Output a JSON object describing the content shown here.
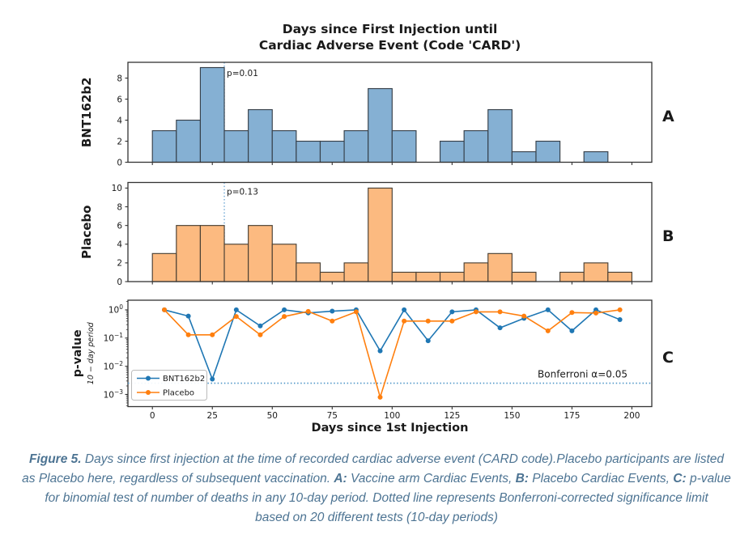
{
  "figure": {
    "title": [
      "Days since First Injection until",
      "Cardiac Adverse Event (Code 'CARD')"
    ],
    "xlabel": "Days since 1st Injection",
    "xticks": [
      0,
      25,
      50,
      75,
      100,
      125,
      150,
      175,
      200
    ],
    "panel_labels": [
      "A",
      "B",
      "C"
    ]
  },
  "chart_data": [
    {
      "type": "bar",
      "panel": "A",
      "ylabel": "BNT162b2",
      "bins_start": 0,
      "bin_width": 10,
      "values": [
        3,
        4,
        9,
        3,
        5,
        3,
        2,
        2,
        3,
        7,
        3,
        0,
        2,
        3,
        5,
        1,
        2,
        0,
        1,
        0
      ],
      "yticks": [
        0,
        2,
        4,
        6,
        8
      ],
      "ylim": [
        0,
        9.5
      ],
      "xlim": [
        -10.2,
        208.3
      ],
      "annotation": {
        "label": "p=0.01",
        "x": 30
      }
    },
    {
      "type": "bar",
      "panel": "B",
      "ylabel": "Placebo",
      "bins_start": 0,
      "bin_width": 10,
      "values": [
        3,
        6,
        6,
        4,
        6,
        4,
        2,
        1,
        2,
        10,
        1,
        1,
        1,
        2,
        3,
        1,
        0,
        1,
        2,
        1
      ],
      "yticks": [
        0,
        2,
        4,
        6,
        8,
        10
      ],
      "ylim": [
        0,
        10.6
      ],
      "xlim": [
        -10.2,
        208.3
      ],
      "annotation": {
        "label": "p=0.13",
        "x": 30
      }
    },
    {
      "type": "line",
      "panel": "C",
      "ylabel": "p-value",
      "ylabel_sub": "10 − day period",
      "yscale": "log",
      "ylim": [
        0.00037,
        2.2
      ],
      "xlim": [
        -10.2,
        208.3
      ],
      "ytick_exponents": [
        0,
        -1,
        -2,
        -3
      ],
      "x": [
        5,
        15,
        25,
        35,
        45,
        55,
        65,
        75,
        85,
        95,
        105,
        115,
        125,
        135,
        145,
        155,
        165,
        175,
        185,
        195
      ],
      "series": [
        {
          "name": "BNT162b2",
          "color": "#1f77b4",
          "values": [
            1.0,
            0.6,
            0.0035,
            1.0,
            0.27,
            1.0,
            0.78,
            0.9,
            1.0,
            0.035,
            1.0,
            0.08,
            0.85,
            1.0,
            0.23,
            0.5,
            1.0,
            0.18,
            1.0,
            0.45
          ]
        },
        {
          "name": "Placebo",
          "color": "#ff7f0e",
          "values": [
            1.0,
            0.13,
            0.13,
            0.58,
            0.13,
            0.58,
            0.88,
            0.4,
            0.85,
            0.0008,
            0.4,
            0.4,
            0.4,
            0.85,
            0.85,
            0.6,
            0.18,
            0.8,
            0.77,
            1.0
          ]
        }
      ],
      "hline": {
        "value": 0.0025,
        "label": "Bonferroni α=0.05"
      },
      "legend": {
        "entries": [
          "BNT162b2",
          "Placebo"
        ],
        "position": "lower left"
      }
    }
  ],
  "colors": {
    "blue_line": "#1f77b4",
    "orange_line": "#ff7f0e",
    "blue_bar_fill": "#85b0d3",
    "blue_bar_edge": "#36404a",
    "orange_bar_fill": "#fcba80",
    "orange_bar_edge": "#4a4034",
    "marker_vline": "#6fa8d6",
    "bonferroni_line": "#4f96c8",
    "spine": "#333333",
    "text": "#1a1a1a",
    "caption": "#4d7493"
  },
  "caption": {
    "l1b": "Figure 5.",
    "l1r": " Days since first injection at the time of recorded cardiac adverse event (CARD code).Placebo participants are listed",
    "l2a": "as Placebo here, regardless of subsequent vaccination. ",
    "l2b1": "A:",
    "l2c": " Vaccine arm Cardiac Events, ",
    "l2b2": "B:",
    "l2d": " Placebo Cardiac Events, ",
    "l2b3": "C:",
    "l2e": " p-value",
    "l3": "for binomial test of number of deaths in any 10-day period. Dotted line represents Bonferroni-corrected significance limit",
    "l4": "based on 20 different tests (10-day periods)"
  }
}
